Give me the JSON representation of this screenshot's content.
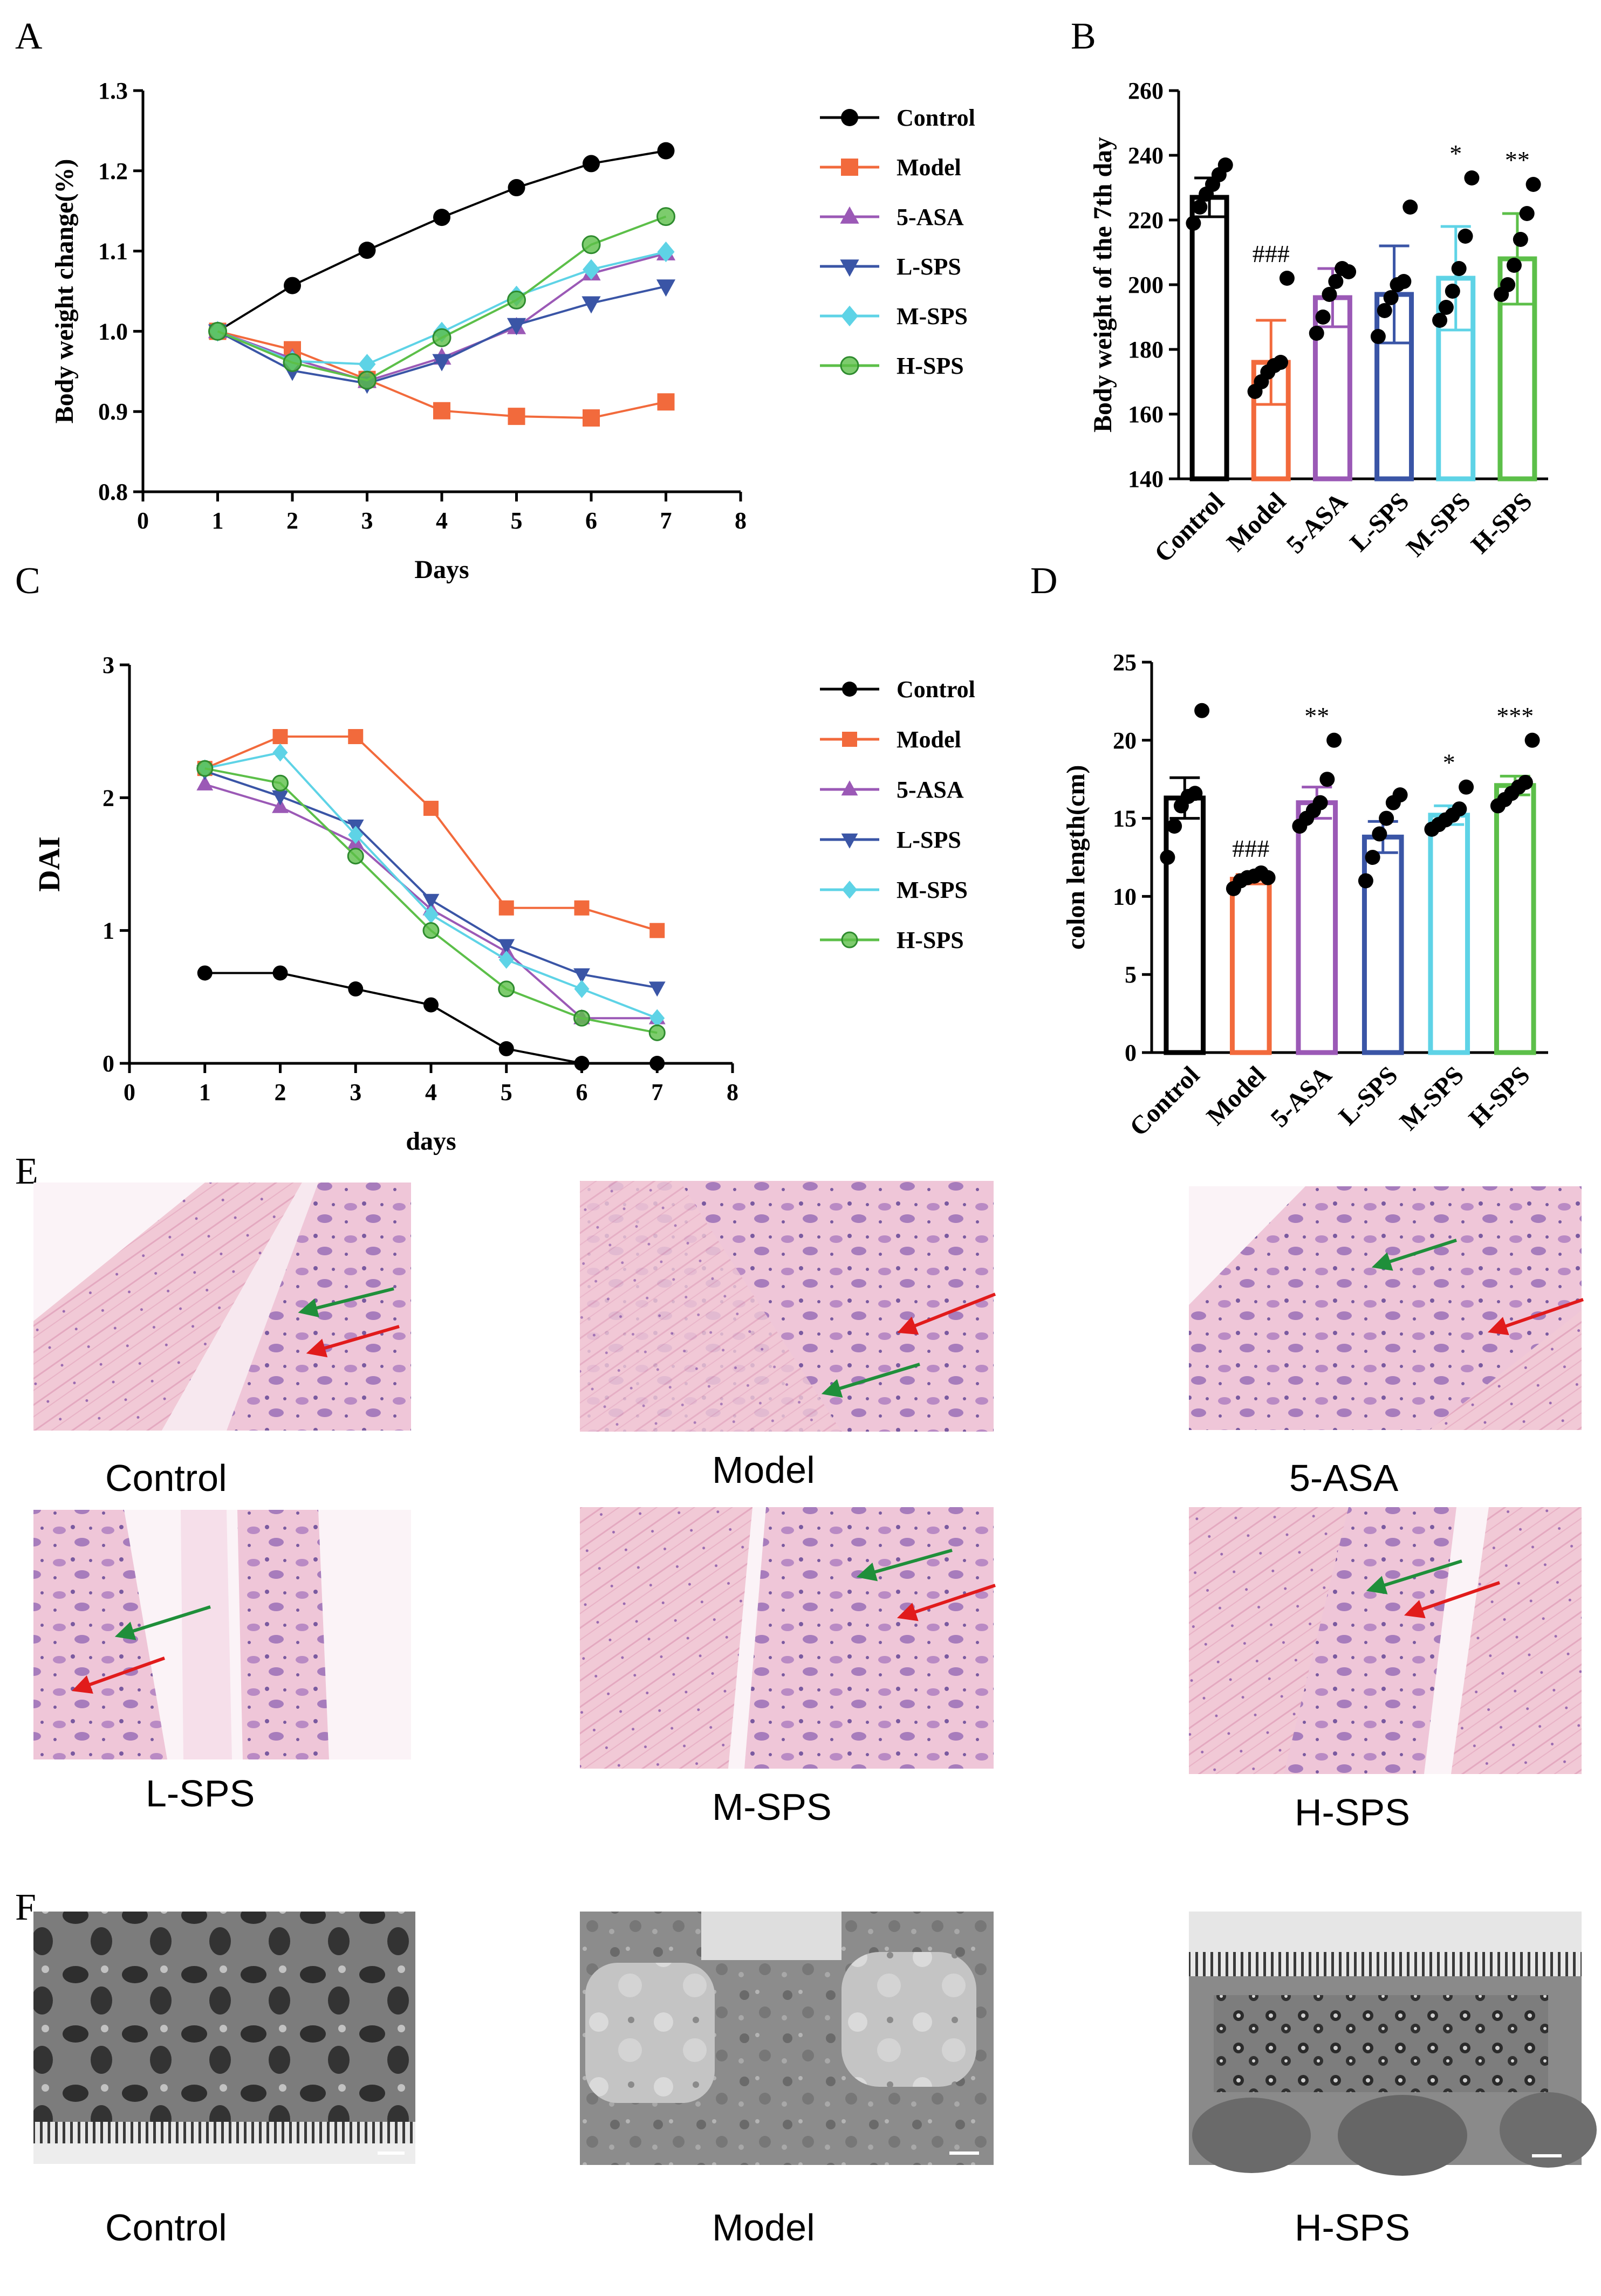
{
  "panel_labels": {
    "a": "A",
    "b": "B",
    "c": "C",
    "d": "D",
    "e": "E",
    "f": "F"
  },
  "colors": {
    "Control": "#000000",
    "Model": "#f26a3c",
    "5-ASA": "#9b59b6",
    "L-SPS": "#3a55a6",
    "M-SPS": "#5ed3e6",
    "H-SPS": "#5cbf49"
  },
  "histology": {
    "E_captions": [
      "Control",
      "Model",
      "5-ASA",
      "L-SPS",
      "M-SPS",
      "H-SPS"
    ],
    "F_captions": [
      "Control",
      "Model",
      "H-SPS"
    ]
  },
  "chart_data": [
    {
      "id": "A",
      "type": "line",
      "xlabel": "Days",
      "ylabel": "Body weight change(%)",
      "xlim": [
        0,
        8
      ],
      "ylim": [
        0.8,
        1.3
      ],
      "xticks": [
        "0",
        "1",
        "2",
        "3",
        "4",
        "5",
        "6",
        "7",
        "8"
      ],
      "yticks": [
        "0.8",
        "0.9",
        "1.0",
        "1.1",
        "1.2",
        "1.3"
      ],
      "x": [
        1,
        2,
        3,
        4,
        5,
        6,
        7
      ],
      "series": [
        {
          "name": "Control",
          "marker": "circle",
          "values": [
            1.0,
            1.057,
            1.101,
            1.142,
            1.179,
            1.209,
            1.225
          ]
        },
        {
          "name": "Model",
          "marker": "square",
          "values": [
            1.0,
            0.977,
            0.94,
            0.901,
            0.894,
            0.892,
            0.912
          ]
        },
        {
          "name": "5-ASA",
          "marker": "triangle-up",
          "values": [
            1.0,
            0.966,
            0.938,
            0.967,
            1.005,
            1.072,
            1.097
          ]
        },
        {
          "name": "L-SPS",
          "marker": "triangle-down",
          "values": [
            1.0,
            0.951,
            0.935,
            0.963,
            1.008,
            1.035,
            1.056
          ]
        },
        {
          "name": "M-SPS",
          "marker": "diamond",
          "values": [
            1.0,
            0.963,
            0.959,
            0.999,
            1.044,
            1.077,
            1.099
          ]
        },
        {
          "name": "H-SPS",
          "marker": "open-circle",
          "values": [
            1.0,
            0.961,
            0.939,
            0.992,
            1.039,
            1.108,
            1.143
          ]
        }
      ]
    },
    {
      "id": "B",
      "type": "bar",
      "ylabel": "Body weight of the 7th day",
      "ylim": [
        140,
        260
      ],
      "yticks": [
        "140",
        "160",
        "180",
        "200",
        "220",
        "240",
        "260"
      ],
      "categories": [
        "Control",
        "Model",
        "5-ASA",
        "L-SPS",
        "M-SPS",
        "H-SPS"
      ],
      "values": [
        227,
        176,
        196,
        197,
        202,
        208
      ],
      "errors": [
        6,
        13,
        9,
        15,
        16,
        14
      ],
      "points": [
        [
          219,
          224,
          228,
          231,
          234,
          237
        ],
        [
          167,
          170,
          173,
          175,
          176,
          202
        ],
        [
          185,
          190,
          197,
          201,
          205,
          204
        ],
        [
          184,
          192,
          196,
          200,
          201,
          224
        ],
        [
          189,
          193,
          198,
          205,
          215,
          233
        ],
        [
          197,
          200,
          206,
          214,
          222,
          231
        ]
      ],
      "annotations": [
        "",
        "###",
        "",
        "",
        "*",
        "**"
      ]
    },
    {
      "id": "C",
      "type": "line",
      "xlabel": "days",
      "ylabel": "DAI",
      "xlim": [
        0,
        8
      ],
      "ylim": [
        0,
        3
      ],
      "xticks": [
        "0",
        "1",
        "2",
        "3",
        "4",
        "5",
        "6",
        "7",
        "8"
      ],
      "yticks": [
        "0",
        "1",
        "2",
        "3"
      ],
      "x": [
        1,
        2,
        3,
        4,
        5,
        6,
        7
      ],
      "series": [
        {
          "name": "Control",
          "marker": "circle",
          "values": [
            0.68,
            0.68,
            0.56,
            0.44,
            0.11,
            0.0,
            0.0
          ]
        },
        {
          "name": "Model",
          "marker": "square",
          "values": [
            2.22,
            2.46,
            2.46,
            1.92,
            1.17,
            1.17,
            1.0
          ]
        },
        {
          "name": "5-ASA",
          "marker": "triangle-up",
          "values": [
            2.1,
            1.93,
            1.66,
            1.16,
            0.84,
            0.34,
            0.34
          ]
        },
        {
          "name": "L-SPS",
          "marker": "triangle-down",
          "values": [
            2.2,
            2.01,
            1.79,
            1.23,
            0.89,
            0.67,
            0.57
          ]
        },
        {
          "name": "M-SPS",
          "marker": "diamond",
          "values": [
            2.22,
            2.34,
            1.72,
            1.12,
            0.78,
            0.56,
            0.34
          ]
        },
        {
          "name": "H-SPS",
          "marker": "open-circle",
          "values": [
            2.22,
            2.11,
            1.56,
            1.0,
            0.56,
            0.34,
            0.23
          ]
        }
      ]
    },
    {
      "id": "D",
      "type": "bar",
      "ylabel": "colon length(cm)",
      "ylim": [
        0,
        25
      ],
      "yticks": [
        "0",
        "5",
        "10",
        "15",
        "20",
        "25"
      ],
      "categories": [
        "Control",
        "Model",
        "5-ASA",
        "L-SPS",
        "M-SPS",
        "H-SPS"
      ],
      "values": [
        16.3,
        11.1,
        16.0,
        13.8,
        15.2,
        17.1
      ],
      "errors": [
        1.3,
        0.3,
        1.0,
        1.0,
        0.6,
        0.6
      ],
      "points": [
        [
          12.5,
          14.5,
          15.8,
          16.4,
          16.6,
          21.9
        ],
        [
          10.5,
          11.0,
          11.2,
          11.3,
          11.5,
          11.2
        ],
        [
          14.5,
          15.0,
          15.5,
          16.0,
          17.5,
          20.0
        ],
        [
          11.0,
          12.5,
          14.0,
          15.0,
          16.0,
          16.5
        ],
        [
          14.3,
          14.6,
          14.9,
          15.2,
          15.6,
          17.0
        ],
        [
          15.8,
          16.2,
          16.6,
          17.0,
          17.3,
          20.0
        ]
      ],
      "annotations": [
        "",
        "###",
        "**",
        "",
        "*",
        "***"
      ]
    }
  ]
}
